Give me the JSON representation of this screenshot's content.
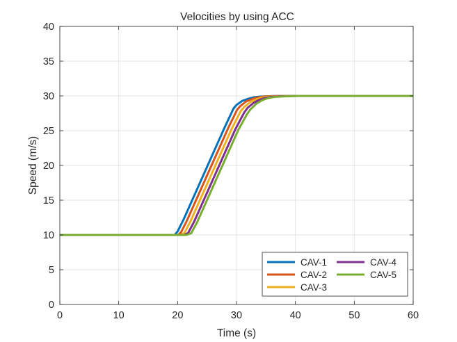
{
  "chart_data": {
    "type": "line",
    "title": "Velocities by using ACC",
    "xlabel": "Time (s)",
    "ylabel": "Speed (m/s)",
    "xlim": [
      0,
      60
    ],
    "ylim": [
      0,
      40
    ],
    "xticks": [
      0,
      10,
      20,
      30,
      40,
      50,
      60
    ],
    "yticks": [
      0,
      5,
      10,
      15,
      20,
      25,
      30,
      35,
      40
    ],
    "grid": true,
    "legend": {
      "position": "bottom-right",
      "columns": 2
    },
    "series": [
      {
        "name": "CAV-1",
        "color": "#0072BD",
        "x": [
          0,
          19.5,
          20,
          21,
          22,
          24,
          26,
          28,
          29.5,
          30,
          31,
          32,
          33,
          34,
          36,
          38,
          40,
          45,
          60
        ],
        "y": [
          10,
          10,
          10.5,
          12.2,
          14.1,
          17.9,
          21.7,
          25.5,
          28.2,
          28.7,
          29.3,
          29.6,
          29.8,
          29.9,
          29.97,
          30,
          30,
          30,
          30
        ]
      },
      {
        "name": "CAV-2",
        "color": "#D95319",
        "x": [
          0,
          20.1,
          20.6,
          21.6,
          22.6,
          24.6,
          26.6,
          28.6,
          30.1,
          30.6,
          31.6,
          32.6,
          33.6,
          34.6,
          36.6,
          38.6,
          40.6,
          45,
          60
        ],
        "y": [
          10,
          10,
          10.4,
          12.1,
          14,
          17.8,
          21.6,
          25.4,
          28,
          28.5,
          29.2,
          29.55,
          29.78,
          29.9,
          29.97,
          30,
          30,
          30,
          30
        ]
      },
      {
        "name": "CAV-3",
        "color": "#EDB120",
        "x": [
          0,
          20.6,
          21.2,
          22.2,
          23.2,
          25.2,
          27.2,
          29.2,
          30.7,
          31.3,
          32.3,
          33.3,
          34.3,
          35.3,
          37.3,
          39.3,
          41.3,
          46,
          60
        ],
        "y": [
          10,
          10,
          10.35,
          12,
          13.9,
          17.7,
          21.5,
          25.3,
          27.8,
          28.4,
          29.1,
          29.5,
          29.75,
          29.88,
          29.96,
          30,
          30,
          30,
          30
        ]
      },
      {
        "name": "CAV-4",
        "color": "#7E2F8E",
        "x": [
          0,
          21.1,
          21.8,
          22.8,
          23.8,
          25.8,
          27.8,
          29.8,
          31.3,
          31.9,
          32.9,
          33.9,
          34.9,
          35.9,
          37.9,
          39.9,
          41.9,
          46,
          60
        ],
        "y": [
          10,
          10,
          10.3,
          11.9,
          13.8,
          17.6,
          21.4,
          25.2,
          27.6,
          28.3,
          29,
          29.45,
          29.72,
          29.86,
          29.96,
          30,
          30,
          30,
          30
        ]
      },
      {
        "name": "CAV-5",
        "color": "#77AC30",
        "x": [
          0,
          21.5,
          22.3,
          23.3,
          24.3,
          26.3,
          28.3,
          30.3,
          31.8,
          32.4,
          33.4,
          34.4,
          35.4,
          36.4,
          38.4,
          40.4,
          42.4,
          47,
          60
        ],
        "y": [
          10,
          10,
          10.25,
          11.8,
          13.7,
          17.5,
          21.3,
          25.1,
          27.4,
          28.1,
          28.9,
          29.4,
          29.7,
          29.85,
          29.95,
          30,
          30,
          30,
          30
        ]
      }
    ]
  }
}
